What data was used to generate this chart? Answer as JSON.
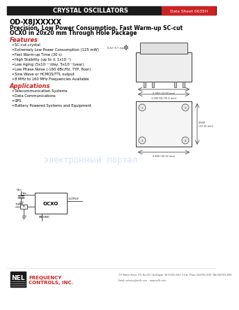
{
  "bg_color": "#ffffff",
  "header_bar_color": "#1a1a1a",
  "header_text": "CRYSTAL OSCILLATORS",
  "header_text_color": "#ffffff",
  "datasheet_label": "Data Sheet 0635H",
  "datasheet_label_bg": "#cc2222",
  "datasheet_label_color": "#ffffff",
  "title_line1": "OD-X8JXXXXX",
  "title_line2": "Precision, Low Power Consumption, Fast Warm-up SC-cut",
  "title_line3": "OCXO in 20x20 mm Through Hole Package",
  "title_color": "#000000",
  "features_label": "Features",
  "features_color": "#cc2222",
  "features_items": [
    "SC-cut crystal",
    "Extremely Low Power Consumption (125 mW)",
    "Fast Warm-up Time (30 s)",
    "High Stability (up to ± 1x10⁻⁸)",
    "Low Aging (5x10⁻¹¹/day, 5x10⁻⁹/year)",
    "Low Phase Noise (-160 dBc/Hz, TYP, floor)",
    "Sine Wave or HCMOS/TTL output",
    "8 MHz to 160 MHz Frequencies Available"
  ],
  "applications_label": "Applications",
  "applications_color": "#cc2222",
  "applications_items": [
    "Telecommunication Systems",
    "Data Communications",
    "GPS",
    "Battery Powered Systems and Equipment"
  ],
  "nel_logo_box_color": "#1a1a1a",
  "nel_text": "NEL",
  "nel_text_color": "#ffffff",
  "nel_company_line1": "FREQUENCY",
  "nel_company_line2": "CONTROLS, INC.",
  "nel_company_color": "#cc2222",
  "footer_address": "777 Robert Street, P.O. Box 457, Burlington, WI 53105-0457 U.S.A.  Phone 262/763-3591  FAX 262/763-2881",
  "footer_email": "Email: nelsales@nelfc.com    www.nelfc.com",
  "footer_color": "#555555",
  "watermark_text": "электронный  портал",
  "watermark_color": "#aaccee"
}
